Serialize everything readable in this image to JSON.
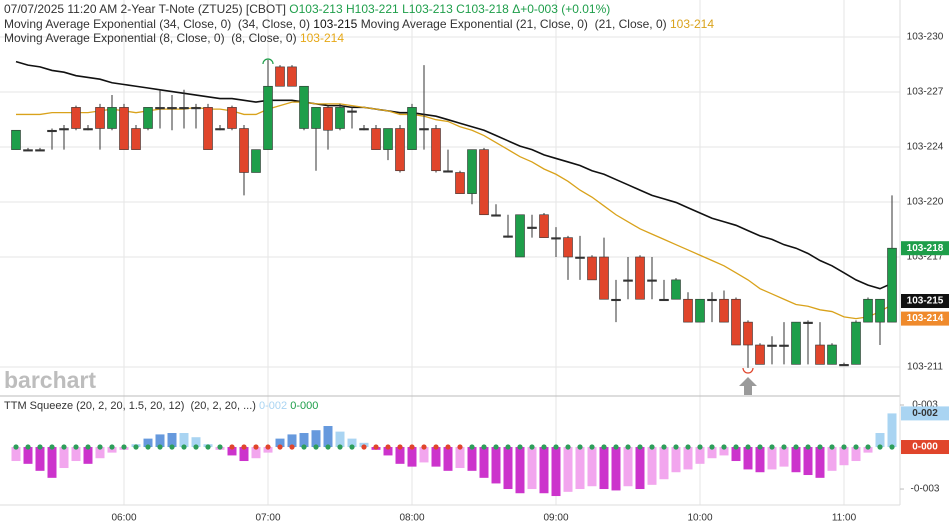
{
  "chart_data": {
    "type": "candlestick",
    "header": {
      "date_time": "07/07/2025  11:20 AM",
      "instrument": "2-Year T-Note (ZTU25) [CBOT]",
      "ohlc_labels": [
        "O103-213",
        "H103-221",
        "L103-213",
        "C103-218"
      ],
      "change": "Δ+0-003 (+0.01%)",
      "color": "#1e9e4a"
    },
    "watermark": "barchart",
    "categories": [
      null,
      null,
      null,
      null,
      null,
      null,
      null,
      null,
      null,
      "06:00",
      null,
      null,
      null,
      null,
      null,
      null,
      null,
      null,
      null,
      null,
      null,
      "07:00",
      null,
      null,
      null,
      null,
      null,
      null,
      null,
      null,
      null,
      null,
      null,
      "08:00",
      null,
      null,
      null,
      null,
      null,
      null,
      null,
      null,
      null,
      null,
      null,
      "09:00",
      null,
      null,
      null,
      null,
      null,
      null,
      null,
      null,
      null,
      null,
      null,
      "10:00",
      null,
      null,
      null,
      null,
      null,
      null,
      null,
      null,
      null,
      null,
      null,
      "11:00",
      null,
      null,
      null,
      null
    ],
    "open": [
      22.36,
      22.36,
      22.36,
      22.47,
      22.48,
      22.6,
      22.48,
      22.6,
      22.48,
      22.6,
      22.48,
      22.48,
      22.6,
      22.6,
      22.6,
      22.6,
      22.6,
      22.48,
      22.6,
      22.48,
      22.23,
      22.36,
      22.83,
      22.83,
      22.48,
      22.48,
      22.6,
      22.48,
      22.58,
      22.48,
      22.48,
      22.36,
      22.48,
      22.36,
      22.48,
      22.48,
      22.24,
      22.23,
      22.11,
      22.36,
      21.99,
      21.87,
      21.75,
      21.92,
      21.99,
      21.86,
      21.86,
      21.75,
      21.75,
      21.75,
      21.51,
      21.62,
      21.75,
      21.62,
      21.51,
      21.51,
      21.51,
      21.38,
      21.51,
      21.51,
      21.51,
      21.38,
      21.25,
      21.25,
      21.25,
      21.14,
      21.38,
      21.25,
      21.14,
      21.14,
      21.14,
      21.38,
      21.38,
      21.38
    ],
    "high": [
      22.47,
      22.37,
      22.37,
      22.48,
      22.5,
      22.61,
      22.5,
      22.62,
      22.67,
      22.62,
      22.5,
      22.6,
      22.7,
      22.67,
      22.7,
      22.62,
      22.62,
      22.5,
      22.61,
      22.5,
      22.36,
      22.87,
      22.84,
      22.84,
      22.72,
      22.6,
      22.61,
      22.62,
      22.6,
      22.5,
      22.5,
      22.48,
      22.5,
      22.62,
      22.84,
      22.5,
      22.36,
      22.24,
      22.36,
      22.37,
      22.05,
      21.99,
      21.99,
      21.99,
      22.0,
      21.92,
      21.87,
      21.87,
      21.76,
      21.86,
      21.62,
      21.75,
      21.76,
      21.75,
      21.62,
      21.63,
      21.55,
      21.51,
      21.55,
      21.56,
      21.52,
      21.39,
      21.26,
      21.3,
      21.38,
      21.38,
      21.39,
      21.38,
      21.26,
      21.15,
      21.39,
      21.52,
      21.51,
      22.1
    ],
    "low": [
      22.36,
      22.36,
      22.36,
      22.36,
      22.36,
      22.47,
      22.47,
      22.36,
      22.47,
      22.36,
      22.36,
      22.47,
      22.48,
      22.47,
      22.48,
      22.48,
      22.36,
      22.47,
      22.47,
      22.1,
      22.23,
      22.36,
      22.72,
      22.72,
      22.47,
      22.24,
      22.36,
      22.47,
      22.48,
      22.47,
      22.36,
      22.3,
      22.23,
      22.36,
      22.36,
      22.23,
      22.23,
      22.11,
      22.05,
      21.99,
      21.99,
      21.86,
      21.75,
      21.86,
      21.86,
      21.75,
      21.62,
      21.62,
      21.62,
      21.51,
      21.38,
      21.51,
      21.51,
      21.51,
      21.51,
      21.51,
      21.38,
      21.38,
      21.38,
      21.38,
      21.25,
      21.12,
      21.14,
      21.14,
      21.14,
      21.14,
      21.14,
      21.14,
      21.14,
      21.14,
      21.14,
      21.38,
      21.25,
      21.38
    ],
    "close": [
      22.47,
      22.36,
      22.36,
      22.47,
      22.48,
      22.48,
      22.48,
      22.48,
      22.6,
      22.36,
      22.36,
      22.6,
      22.6,
      22.6,
      22.6,
      22.6,
      22.36,
      22.48,
      22.48,
      22.23,
      22.36,
      22.72,
      22.72,
      22.72,
      22.72,
      22.6,
      22.47,
      22.6,
      22.58,
      22.48,
      22.36,
      22.48,
      22.24,
      22.6,
      22.48,
      22.24,
      22.24,
      22.11,
      22.36,
      21.99,
      21.99,
      21.87,
      21.99,
      21.92,
      21.86,
      21.86,
      21.75,
      21.75,
      21.62,
      21.51,
      21.51,
      21.62,
      21.51,
      21.62,
      21.51,
      21.62,
      21.38,
      21.51,
      21.51,
      21.38,
      21.25,
      21.25,
      21.14,
      21.25,
      21.25,
      21.38,
      21.38,
      21.14,
      21.25,
      21.14,
      21.38,
      21.51,
      21.51,
      21.8
    ],
    "up_color": "#1e9e4a",
    "down_color": "#e0452b",
    "flat_color": "#333333",
    "ylim": [
      20.966,
      23.21
    ],
    "yticks": [
      {
        "value": 23.0,
        "label": "103-230"
      },
      {
        "value": 22.6875,
        "label": "103-227"
      },
      {
        "value": 22.375,
        "label": "103-224"
      },
      {
        "value": 22.0625,
        "label": "103-220"
      },
      {
        "value": 21.75,
        "label": "103-217"
      },
      {
        "value": 21.125,
        "label": "103-211"
      }
    ],
    "grid": true,
    "series": [
      {
        "name": "Moving Average Exponential (34, Close, 0)",
        "params": "(34, Close, 0)",
        "last_label": "103-215",
        "color": "#111111",
        "values": [
          22.86,
          22.84,
          22.83,
          22.81,
          22.8,
          22.78,
          22.77,
          22.76,
          22.74,
          22.73,
          22.72,
          22.71,
          22.7,
          22.69,
          22.68,
          22.67,
          22.66,
          22.65,
          22.65,
          22.64,
          22.63,
          22.64,
          22.64,
          22.64,
          22.63,
          22.62,
          22.61,
          22.61,
          22.6,
          22.6,
          22.59,
          22.58,
          22.57,
          22.57,
          22.56,
          22.55,
          22.53,
          22.51,
          22.49,
          22.47,
          22.44,
          22.41,
          22.38,
          22.36,
          22.33,
          22.31,
          22.29,
          22.27,
          22.24,
          22.22,
          22.19,
          22.16,
          22.13,
          22.1,
          22.08,
          22.06,
          22.03,
          22.0,
          21.97,
          21.95,
          21.93,
          21.9,
          21.87,
          21.85,
          21.82,
          21.8,
          21.77,
          21.73,
          21.7,
          21.66,
          21.62,
          21.59,
          21.57,
          21.6
        ]
      },
      {
        "name": "Moving Average Exponential (21, Close, 0)",
        "params": "(21, Close, 0)",
        "last_label": "103-214",
        "color": "#d9a21b",
        "values": [
          22.56,
          22.56,
          22.56,
          22.57,
          22.57,
          22.57,
          22.57,
          22.58,
          22.59,
          22.58,
          22.57,
          22.58,
          22.59,
          22.59,
          22.59,
          22.6,
          22.59,
          22.59,
          22.58,
          22.56,
          22.56,
          22.59,
          22.61,
          22.63,
          22.63,
          22.62,
          22.62,
          22.62,
          22.61,
          22.6,
          22.59,
          22.58,
          22.56,
          22.56,
          22.55,
          22.53,
          22.52,
          22.49,
          22.47,
          22.44,
          22.4,
          22.36,
          22.32,
          22.29,
          22.25,
          22.22,
          22.18,
          22.13,
          22.09,
          22.04,
          21.99,
          21.95,
          21.91,
          21.88,
          21.85,
          21.82,
          21.79,
          21.76,
          21.73,
          21.7,
          21.66,
          21.62,
          21.57,
          21.54,
          21.51,
          21.48,
          21.47,
          21.45,
          21.44,
          21.41,
          21.4,
          21.41,
          21.44,
          21.48
        ]
      }
    ],
    "extra_legend": {
      "name": "Moving Average Exponential (8, Close, 0)",
      "params": "(8, Close, 0)",
      "last_label": "103-214",
      "color": "#e6a817"
    },
    "price_labels": [
      {
        "value": 21.8,
        "label": "103-218",
        "color": "#1e9e4a"
      },
      {
        "value": 21.5,
        "label": "103-215",
        "color": "#111111"
      },
      {
        "value": 21.4,
        "label": "103-214",
        "color": "#ef8a2c"
      }
    ],
    "indicator": {
      "name": "TTM Squeeze (20, 2, 20, 1.5, 20, 12)",
      "params": "(20, 2, 20, ...)",
      "value_label": "0-002",
      "value_color": "#a9d4f2",
      "signal_label": "0-000",
      "signal_color": "#1e9e4a",
      "ylim": [
        -0.414,
        0.35
      ],
      "yticks": [
        {
          "value": 0.3,
          "label": "0-003"
        },
        {
          "value": -0.3,
          "label": "-0-003"
        }
      ],
      "values": [
        -0.1,
        -0.12,
        -0.17,
        -0.22,
        -0.15,
        -0.1,
        -0.12,
        -0.08,
        -0.04,
        -0.02,
        0.02,
        0.06,
        0.09,
        0.1,
        0.1,
        0.07,
        0.02,
        -0.02,
        -0.06,
        -0.1,
        -0.08,
        -0.04,
        0.06,
        0.09,
        0.1,
        0.12,
        0.15,
        0.11,
        0.06,
        0.03,
        -0.02,
        -0.06,
        -0.12,
        -0.14,
        -0.11,
        -0.14,
        -0.17,
        -0.15,
        -0.17,
        -0.22,
        -0.26,
        -0.3,
        -0.33,
        -0.3,
        -0.33,
        -0.35,
        -0.32,
        -0.3,
        -0.28,
        -0.3,
        -0.31,
        -0.28,
        -0.3,
        -0.27,
        -0.23,
        -0.18,
        -0.16,
        -0.12,
        -0.08,
        -0.06,
        -0.1,
        -0.16,
        -0.18,
        -0.16,
        -0.14,
        -0.18,
        -0.2,
        -0.22,
        -0.17,
        -0.13,
        -0.1,
        -0.04,
        0.1,
        0.24
      ],
      "bar_colors": [
        "#f2a6ee",
        "#cc33cc",
        "#cc33cc",
        "#cc33cc",
        "#f2a6ee",
        "#f2a6ee",
        "#cc33cc",
        "#f2a6ee",
        "#f2a6ee",
        "#f2a6ee",
        "#a9d4f2",
        "#6699dd",
        "#6699dd",
        "#6699dd",
        "#a9d4f2",
        "#a9d4f2",
        "#a9d4f2",
        "#f2a6ee",
        "#cc33cc",
        "#cc33cc",
        "#f2a6ee",
        "#f2a6ee",
        "#6699dd",
        "#6699dd",
        "#6699dd",
        "#6699dd",
        "#6699dd",
        "#a9d4f2",
        "#a9d4f2",
        "#a9d4f2",
        "#cc33cc",
        "#cc33cc",
        "#cc33cc",
        "#cc33cc",
        "#f2a6ee",
        "#cc33cc",
        "#cc33cc",
        "#f2a6ee",
        "#cc33cc",
        "#cc33cc",
        "#cc33cc",
        "#cc33cc",
        "#cc33cc",
        "#f2a6ee",
        "#cc33cc",
        "#cc33cc",
        "#f2a6ee",
        "#f2a6ee",
        "#f2a6ee",
        "#cc33cc",
        "#cc33cc",
        "#f2a6ee",
        "#cc33cc",
        "#f2a6ee",
        "#f2a6ee",
        "#f2a6ee",
        "#f2a6ee",
        "#f2a6ee",
        "#f2a6ee",
        "#f2a6ee",
        "#cc33cc",
        "#cc33cc",
        "#cc33cc",
        "#f2a6ee",
        "#f2a6ee",
        "#cc33cc",
        "#cc33cc",
        "#cc33cc",
        "#f2a6ee",
        "#f2a6ee",
        "#f2a6ee",
        "#f2a6ee",
        "#a9d4f2",
        "#a9d4f2"
      ],
      "dot_colors": [
        "#2e9e5a",
        "#2e9e5a",
        "#2e9e5a",
        "#2e9e5a",
        "#2e9e5a",
        "#2e9e5a",
        "#2e9e5a",
        "#2e9e5a",
        "#2e9e5a",
        "#2e9e5a",
        "#2e9e5a",
        "#2e9e5a",
        "#2e9e5a",
        "#2e9e5a",
        "#2e9e5a",
        "#2e9e5a",
        "#2e9e5a",
        "#2e9e5a",
        "#e0452b",
        "#e0452b",
        "#e0452b",
        "#e0452b",
        "#e0452b",
        "#e0452b",
        "#2e9e5a",
        "#2e9e5a",
        "#2e9e5a",
        "#2e9e5a",
        "#2e9e5a",
        "#e0452b",
        "#e0452b",
        "#e0452b",
        "#e0452b",
        "#e0452b",
        "#e0452b",
        "#e0452b",
        "#e0452b",
        "#e0452b",
        "#2e9e5a",
        "#2e9e5a",
        "#2e9e5a",
        "#2e9e5a",
        "#2e9e5a",
        "#2e9e5a",
        "#2e9e5a",
        "#2e9e5a",
        "#2e9e5a",
        "#2e9e5a",
        "#2e9e5a",
        "#2e9e5a",
        "#2e9e5a",
        "#2e9e5a",
        "#2e9e5a",
        "#2e9e5a",
        "#2e9e5a",
        "#2e9e5a",
        "#2e9e5a",
        "#2e9e5a",
        "#2e9e5a",
        "#2e9e5a",
        "#2e9e5a",
        "#2e9e5a",
        "#2e9e5a",
        "#2e9e5a",
        "#2e9e5a",
        "#2e9e5a",
        "#2e9e5a",
        "#2e9e5a",
        "#2e9e5a",
        "#2e9e5a",
        "#2e9e5a",
        "#2e9e5a",
        "#2e9e5a",
        "#2e9e5a"
      ],
      "signal_box_color": "#e0452b"
    }
  }
}
